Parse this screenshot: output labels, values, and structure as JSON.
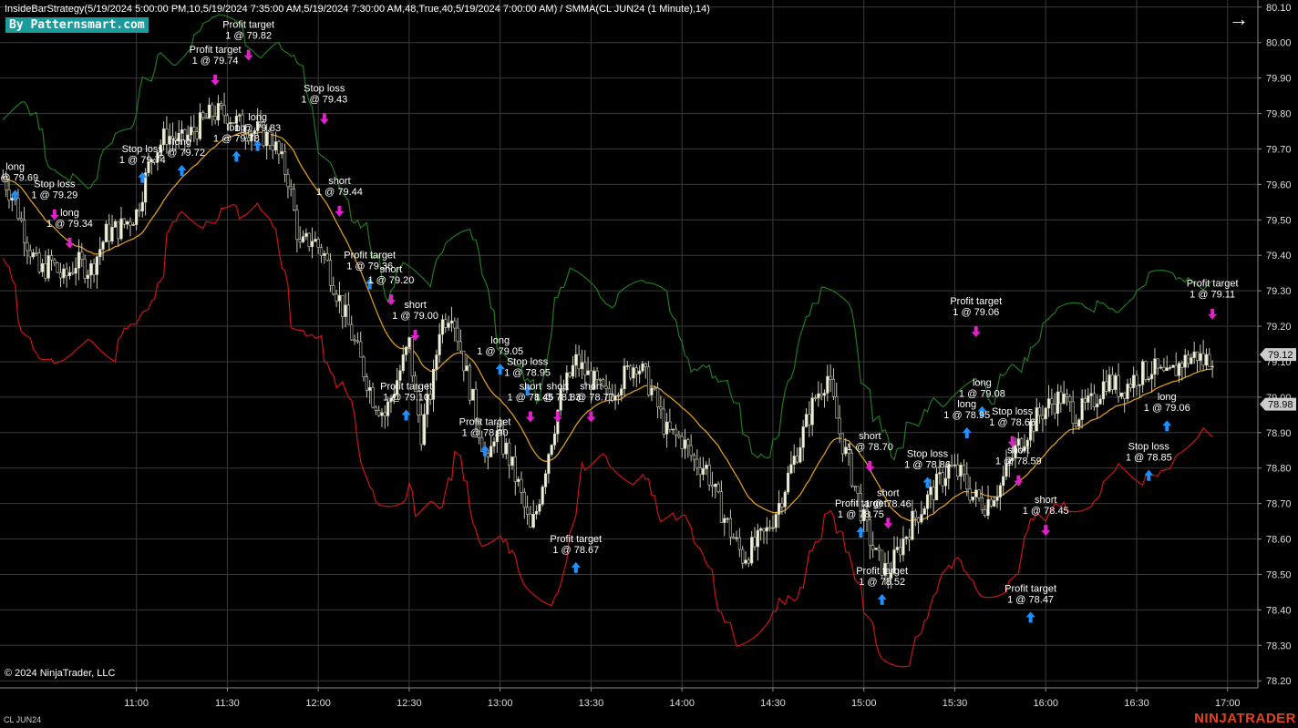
{
  "title": "InsideBarStrategy(5/19/2024 5:00:00 PM,10,5/19/2024 7:35:00 AM,5/19/2024 7:30:00 AM,48,True,40,5/19/2024 7:00:00 AM) / SMMA(CL JUN24 (1 Minute),14)",
  "badge": "By Patternsmart.com",
  "copyright": "© 2024 NinjaTrader, LLC",
  "instrument": "CL JUN24",
  "brand": "NINJATRADER",
  "nav_arrow": "→",
  "colors": {
    "background": "#000000",
    "grid": "#3a3a3a",
    "candle_up": "#f4f4dc",
    "candle_down": "#000000",
    "upper_band": "#1f7a1f",
    "lower_band": "#cc1414",
    "smma": "#d99a1e",
    "long_arrow": "#1e90ff",
    "short_arrow": "#e020c8",
    "price_tag_bg": "#cccccc"
  },
  "chart_data": {
    "type": "candlestick",
    "symbol": "CL JUN24 (1 Minute)",
    "x_ticks": [
      "11:00",
      "11:30",
      "12:00",
      "12:30",
      "13:00",
      "13:30",
      "14:00",
      "14:30",
      "15:00",
      "15:30",
      "16:00",
      "16:30",
      "17:00"
    ],
    "x_range_minutes": [
      615,
      1030
    ],
    "y_ticks": [
      "80.10",
      "80.00",
      "79.90",
      "79.80",
      "79.70",
      "79.60",
      "79.50",
      "79.40",
      "79.30",
      "79.20",
      "79.10",
      "79.00",
      "78.90",
      "78.80",
      "78.70",
      "78.60",
      "78.50",
      "78.40",
      "78.30",
      "78.20"
    ],
    "ylim": [
      78.18,
      80.12
    ],
    "price_tags": [
      {
        "label": "79.12",
        "value": 79.12
      },
      {
        "label": "78.98",
        "value": 78.98
      }
    ],
    "price_path": [
      [
        616,
        79.62
      ],
      [
        620,
        79.55
      ],
      [
        624,
        79.44
      ],
      [
        628,
        79.35
      ],
      [
        632,
        79.38
      ],
      [
        636,
        79.33
      ],
      [
        640,
        79.38
      ],
      [
        645,
        79.36
      ],
      [
        650,
        79.46
      ],
      [
        655,
        79.48
      ],
      [
        660,
        79.52
      ],
      [
        665,
        79.68
      ],
      [
        670,
        79.74
      ],
      [
        675,
        79.72
      ],
      [
        680,
        79.76
      ],
      [
        685,
        79.8
      ],
      [
        690,
        79.8
      ],
      [
        695,
        79.76
      ],
      [
        700,
        79.75
      ],
      [
        705,
        79.72
      ],
      [
        710,
        79.62
      ],
      [
        714,
        79.42
      ],
      [
        718,
        79.45
      ],
      [
        722,
        79.4
      ],
      [
        726,
        79.3
      ],
      [
        730,
        79.2
      ],
      [
        734,
        79.1
      ],
      [
        738,
        79.0
      ],
      [
        742,
        78.95
      ],
      [
        746,
        79.05
      ],
      [
        750,
        79.15
      ],
      [
        752,
        79.0
      ],
      [
        754,
        78.9
      ],
      [
        758,
        79.05
      ],
      [
        760,
        79.2
      ],
      [
        764,
        79.25
      ],
      [
        768,
        79.1
      ],
      [
        772,
        78.95
      ],
      [
        776,
        78.8
      ],
      [
        778,
        78.9
      ],
      [
        782,
        78.85
      ],
      [
        786,
        78.75
      ],
      [
        790,
        78.62
      ],
      [
        792,
        78.68
      ],
      [
        796,
        78.85
      ],
      [
        800,
        79.0
      ],
      [
        805,
        79.1
      ],
      [
        810,
        79.05
      ],
      [
        815,
        79.0
      ],
      [
        820,
        79.05
      ],
      [
        825,
        79.1
      ],
      [
        830,
        79.02
      ],
      [
        835,
        78.9
      ],
      [
        840,
        78.88
      ],
      [
        844,
        78.82
      ],
      [
        848,
        78.8
      ],
      [
        852,
        78.7
      ],
      [
        856,
        78.62
      ],
      [
        860,
        78.55
      ],
      [
        864,
        78.58
      ],
      [
        868,
        78.62
      ],
      [
        872,
        78.7
      ],
      [
        876,
        78.8
      ],
      [
        880,
        78.9
      ],
      [
        884,
        79.0
      ],
      [
        888,
        79.06
      ],
      [
        892,
        78.9
      ],
      [
        896,
        78.78
      ],
      [
        900,
        78.65
      ],
      [
        904,
        78.55
      ],
      [
        908,
        78.5
      ],
      [
        912,
        78.58
      ],
      [
        916,
        78.65
      ],
      [
        920,
        78.7
      ],
      [
        924,
        78.75
      ],
      [
        928,
        78.8
      ],
      [
        932,
        78.78
      ],
      [
        936,
        78.72
      ],
      [
        940,
        78.7
      ],
      [
        945,
        78.75
      ],
      [
        950,
        78.85
      ],
      [
        955,
        78.92
      ],
      [
        960,
        78.97
      ],
      [
        965,
        79.0
      ],
      [
        970,
        78.95
      ],
      [
        975,
        78.98
      ],
      [
        980,
        79.05
      ],
      [
        985,
        79.02
      ],
      [
        990,
        79.06
      ],
      [
        995,
        79.08
      ],
      [
        1000,
        79.05
      ],
      [
        1005,
        79.1
      ],
      [
        1010,
        79.12
      ],
      [
        1012,
        79.1
      ],
      [
        1015,
        79.12
      ]
    ],
    "annotations": [
      {
        "text": [
          "long",
          "1 @ 79.69"
        ],
        "t": 620,
        "p": 79.59,
        "dir": "long"
      },
      {
        "text": [
          "Stop loss",
          "1 @ 79.29"
        ],
        "t": 633,
        "p": 79.54,
        "dir": "short"
      },
      {
        "text": [
          "long",
          "1 @ 79.34"
        ],
        "t": 638,
        "p": 79.46,
        "dir": "short"
      },
      {
        "text": [
          "Stop loss",
          "1 @ 79.74"
        ],
        "t": 662,
        "p": 79.64,
        "dir": "long"
      },
      {
        "text": [
          "long",
          "1 @ 79.72"
        ],
        "t": 675,
        "p": 79.66,
        "dir": "long"
      },
      {
        "text": [
          "Profit target",
          "1 @ 79.74"
        ],
        "t": 686,
        "p": 79.92,
        "dir": "short"
      },
      {
        "text": [
          "Profit target",
          "1 @ 79.82"
        ],
        "t": 697,
        "p": 79.99,
        "dir": "short"
      },
      {
        "text": [
          "long",
          "1 @ 79.83"
        ],
        "t": 700,
        "p": 79.73,
        "dir": "long"
      },
      {
        "text": [
          "long",
          "1 @ 79.78"
        ],
        "t": 693,
        "p": 79.7,
        "dir": "long"
      },
      {
        "text": [
          "Stop loss",
          "1 @ 79.43"
        ],
        "t": 722,
        "p": 79.81,
        "dir": "short"
      },
      {
        "text": [
          "short",
          "1 @ 79.44"
        ],
        "t": 727,
        "p": 79.55,
        "dir": "short"
      },
      {
        "text": [
          "Profit target",
          "1 @ 79.36"
        ],
        "t": 737,
        "p": 79.34,
        "dir": "long"
      },
      {
        "text": [
          "short",
          "1 @ 79.20"
        ],
        "t": 744,
        "p": 79.3,
        "dir": "short"
      },
      {
        "text": [
          "short",
          "1 @ 79.00"
        ],
        "t": 752,
        "p": 79.2,
        "dir": "short"
      },
      {
        "text": [
          "Profit target",
          "1 @ 79.10"
        ],
        "t": 749,
        "p": 78.97,
        "dir": "long"
      },
      {
        "text": [
          "Profit target",
          "1 @ 78.90"
        ],
        "t": 775,
        "p": 78.87,
        "dir": "long"
      },
      {
        "text": [
          "long",
          "1 @ 79.05"
        ],
        "t": 780,
        "p": 79.1,
        "dir": "long"
      },
      {
        "text": [
          "Stop loss",
          "1 @ 78.95"
        ],
        "t": 789,
        "p": 79.04,
        "dir": "long"
      },
      {
        "text": [
          "short",
          "1 @ 78.45"
        ],
        "t": 790,
        "p": 78.97,
        "dir": "short"
      },
      {
        "text": [
          "short",
          "1 @ 78.83"
        ],
        "t": 799,
        "p": 78.97,
        "dir": "short"
      },
      {
        "text": [
          "short",
          "1 @ 78.77"
        ],
        "t": 810,
        "p": 78.97,
        "dir": "short"
      },
      {
        "text": [
          "Profit target",
          "1 @ 78.67"
        ],
        "t": 805,
        "p": 78.54,
        "dir": "long"
      },
      {
        "text": [
          "short",
          "1 @ 78.70"
        ],
        "t": 902,
        "p": 78.83,
        "dir": "short"
      },
      {
        "text": [
          "Profit target",
          "1 @ 78.75"
        ],
        "t": 899,
        "p": 78.64,
        "dir": "long"
      },
      {
        "text": [
          "short",
          "1 @ 78.46"
        ],
        "t": 908,
        "p": 78.67,
        "dir": "short"
      },
      {
        "text": [
          "Profit target",
          "1 @ 78.52"
        ],
        "t": 906,
        "p": 78.45,
        "dir": "long"
      },
      {
        "text": [
          "Stop loss",
          "1 @ 78.86"
        ],
        "t": 921,
        "p": 78.78,
        "dir": "long"
      },
      {
        "text": [
          "Profit target",
          "1 @ 79.06"
        ],
        "t": 937,
        "p": 79.21,
        "dir": "short"
      },
      {
        "text": [
          "long",
          "1 @ 79.08"
        ],
        "t": 939,
        "p": 78.98,
        "dir": "long"
      },
      {
        "text": [
          "long",
          "1 @ 78.95"
        ],
        "t": 934,
        "p": 78.92,
        "dir": "long"
      },
      {
        "text": [
          "Stop loss",
          "1 @ 78.66"
        ],
        "t": 949,
        "p": 78.9,
        "dir": "short"
      },
      {
        "text": [
          "short",
          "1 @ 78.59"
        ],
        "t": 951,
        "p": 78.79,
        "dir": "short"
      },
      {
        "text": [
          "short",
          "1 @ 78.45"
        ],
        "t": 960,
        "p": 78.65,
        "dir": "short"
      },
      {
        "text": [
          "Profit target",
          "1 @ 78.47"
        ],
        "t": 955,
        "p": 78.4,
        "dir": "long"
      },
      {
        "text": [
          "Stop loss",
          "1 @ 78.85"
        ],
        "t": 994,
        "p": 78.8,
        "dir": "long"
      },
      {
        "text": [
          "long",
          "1 @ 79.06"
        ],
        "t": 1000,
        "p": 78.94,
        "dir": "long"
      },
      {
        "text": [
          "Profit target",
          "1 @ 79.11"
        ],
        "t": 1015,
        "p": 79.26,
        "dir": "short"
      }
    ]
  }
}
